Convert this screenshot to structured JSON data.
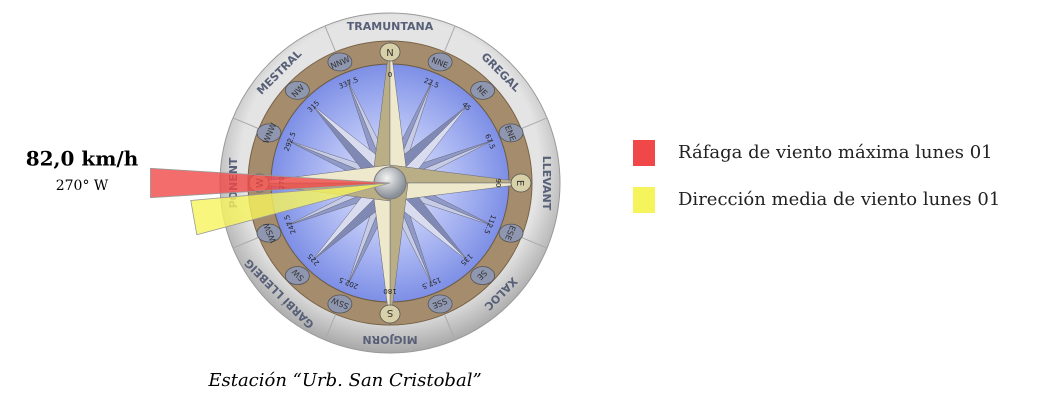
{
  "compass": {
    "winds": [
      "TRAMUNTANA",
      "GREGAL",
      "LLEVANT",
      "XALOC",
      "MIGJORN",
      "GARBÍ LLEBEIG",
      "PONENT",
      "MESTRAL"
    ],
    "points": [
      "N",
      "NNE",
      "NE",
      "ENE",
      "E",
      "ESE",
      "SE",
      "SSE",
      "S",
      "SSW",
      "SW",
      "WSW",
      "W",
      "WNW",
      "NW",
      "NNW"
    ],
    "degrees": [
      0,
      22.5,
      45,
      67.5,
      90,
      112.5,
      135,
      157.5,
      180,
      202.5,
      225,
      247.5,
      270,
      292.5,
      315,
      337.5
    ]
  },
  "readout": {
    "speed": "82,0 km/h",
    "direction": "270° W"
  },
  "legend": [
    {
      "label": "Ráfaga de viento máxima lunes 01",
      "color": "#f04848",
      "direction": 270
    },
    {
      "label": "Dirección media de viento lunes 01",
      "color": "#f6f45c",
      "direction": 260
    }
  ],
  "caption": "Estación “Urb. San Cristobal”"
}
